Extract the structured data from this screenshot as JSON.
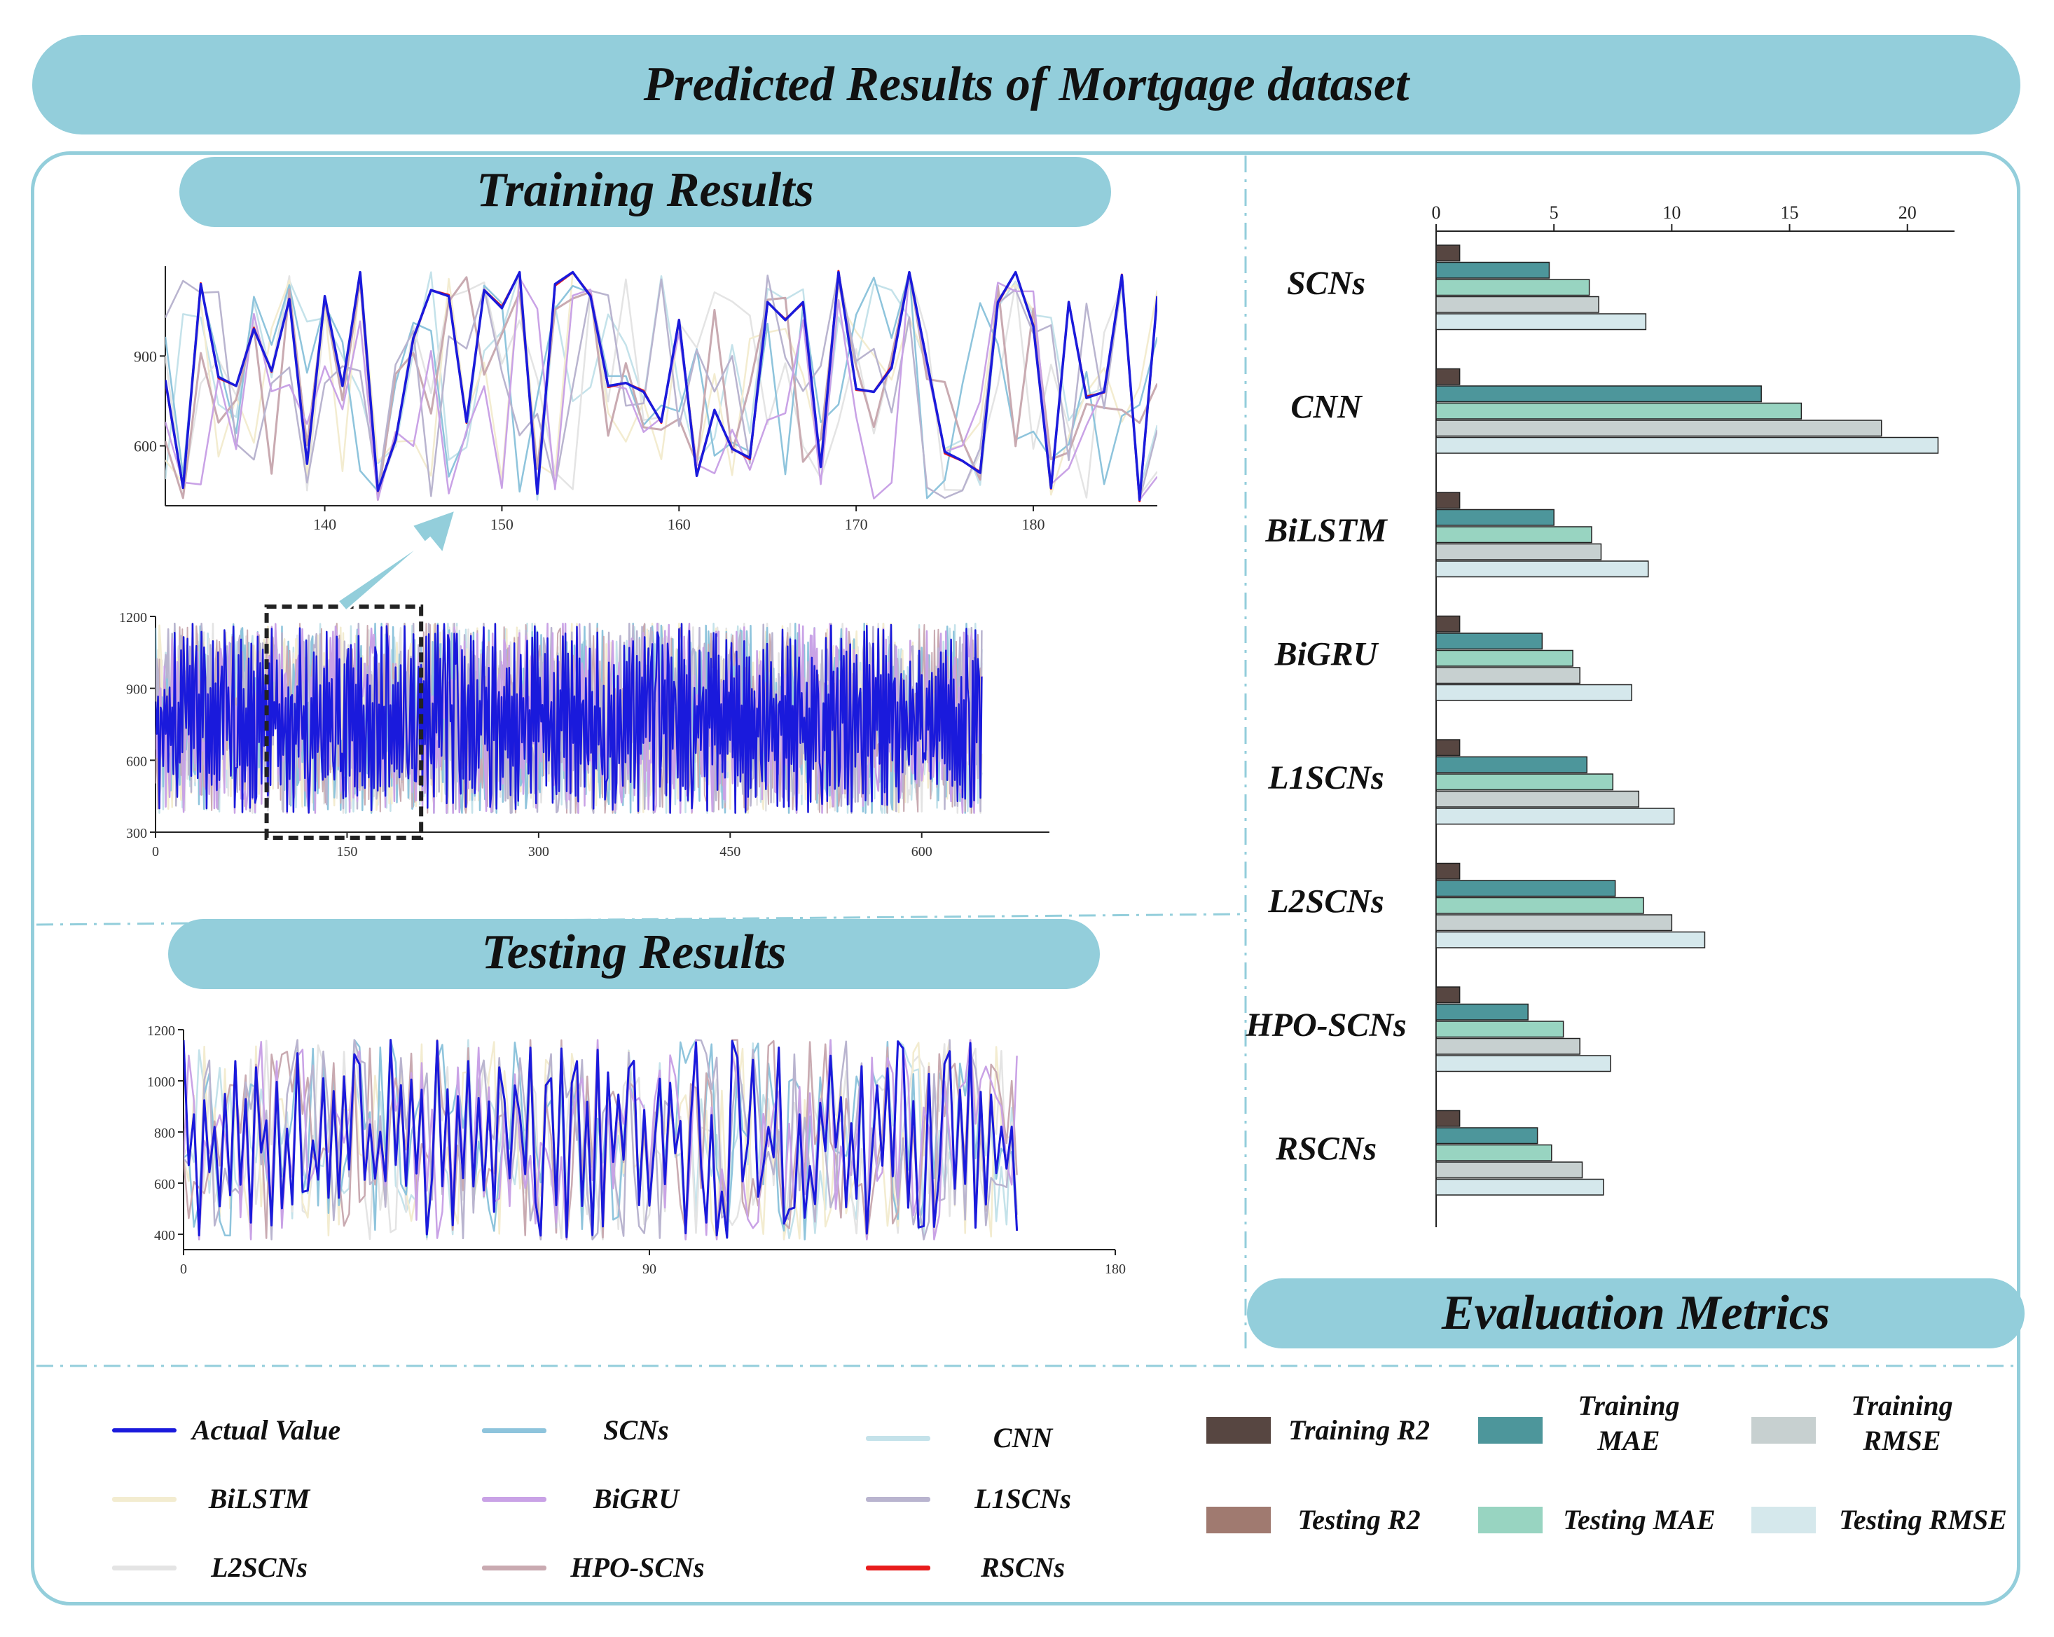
{
  "title": "Predicted Results of Mortgage dataset",
  "sections": {
    "training": "Training Results",
    "testing": "Testing Results",
    "metrics": "Evaluation Metrics"
  },
  "colors": {
    "banner": "#93cedb",
    "actual": "#1a1adc",
    "scns": "#8ec4dc",
    "cnn": "#c4e2ea",
    "bilstm": "#f3ecd0",
    "bigru": "#c9a2e6",
    "l1scns": "#b9b4cf",
    "l2scns": "#e4e4e4",
    "hposcns": "#c9aab1",
    "rscns": "#e81c1c",
    "training_r2": "#574641",
    "testing_r2": "#a07a70",
    "training_mae": "#4d969b",
    "testing_mae": "#98d4c1",
    "training_rmse": "#c7d0d0",
    "testing_rmse": "#d5e8ec"
  },
  "legend": {
    "lines": [
      {
        "key": "actual",
        "label": "Actual Value"
      },
      {
        "key": "scns",
        "label": "SCNs"
      },
      {
        "key": "cnn",
        "label": "CNN"
      },
      {
        "key": "bilstm",
        "label": "BiLSTM"
      },
      {
        "key": "bigru",
        "label": "BiGRU"
      },
      {
        "key": "l1scns",
        "label": "L1SCNs"
      },
      {
        "key": "l2scns",
        "label": "L2SCNs"
      },
      {
        "key": "hposcns",
        "label": "HPO-SCNs"
      },
      {
        "key": "rscns",
        "label": "RSCNs"
      }
    ],
    "metrics": [
      {
        "key": "training_r2",
        "label": "Training R2"
      },
      {
        "key": "training_mae",
        "label": "Training MAE"
      },
      {
        "key": "training_rmse",
        "label": "Training RMSE"
      },
      {
        "key": "testing_r2",
        "label": "Testing R2"
      },
      {
        "key": "testing_mae",
        "label": "Testing MAE"
      },
      {
        "key": "testing_rmse",
        "label": "Testing RMSE"
      }
    ]
  },
  "chart_data": [
    {
      "id": "training_zoom",
      "type": "line",
      "title": "Training Results (zoom)",
      "xlim": [
        131,
        187
      ],
      "ylim": [
        400,
        1200
      ],
      "xticks": [
        140,
        150,
        160,
        170,
        180
      ],
      "yticks": [
        600,
        900
      ],
      "x_start": 131,
      "actual": [
        820,
        460,
        1140,
        830,
        800,
        990,
        850,
        1090,
        540,
        1100,
        800,
        1180,
        450,
        620,
        960,
        1120,
        1100,
        680,
        1120,
        1060,
        1180,
        440,
        1140,
        1180,
        1100,
        800,
        810,
        780,
        680,
        1020,
        500,
        720,
        590,
        560,
        1080,
        1020,
        1080,
        530,
        1180,
        790,
        780,
        860,
        1180,
        880,
        580,
        550,
        510,
        1080,
        1180,
        1000,
        460,
        1080,
        760,
        780,
        1170,
        420,
        1100
      ]
    },
    {
      "id": "training_full",
      "type": "line",
      "title": "Training Results (full)",
      "xlim": [
        0,
        700
      ],
      "ylim": [
        300,
        1200
      ],
      "xticks": [
        0,
        150,
        300,
        450,
        600
      ],
      "yticks": [
        300,
        600,
        900,
        1200
      ],
      "n_points": 648,
      "value_range": [
        380,
        1170
      ],
      "zoom_window": [
        87,
        208
      ]
    },
    {
      "id": "testing",
      "type": "line",
      "title": "Testing Results",
      "xlim": [
        0,
        180
      ],
      "ylim": [
        340,
        1200
      ],
      "xticks": [
        0,
        90,
        180
      ],
      "yticks": [
        400,
        600,
        800,
        1000,
        1200
      ],
      "n_points": 162,
      "value_range": [
        380,
        1160
      ]
    },
    {
      "id": "metrics",
      "type": "bar",
      "orientation": "horizontal",
      "title": "Evaluation Metrics",
      "xlim": [
        0,
        22
      ],
      "xticks": [
        0,
        5,
        10,
        15,
        20
      ],
      "categories": [
        "SCNs",
        "CNN",
        "BiLSTM",
        "BiGRU",
        "L1SCNs",
        "L2SCNs",
        "HPO-SCNs",
        "RSCNs"
      ],
      "series": [
        {
          "key": "training_r2",
          "name": "Training R2",
          "values": [
            1.0,
            1.0,
            1.0,
            1.0,
            1.0,
            1.0,
            1.0,
            1.0
          ]
        },
        {
          "key": "training_mae",
          "name": "Training MAE",
          "values": [
            4.8,
            13.8,
            5.0,
            4.5,
            6.4,
            7.6,
            3.9,
            4.3
          ]
        },
        {
          "key": "testing_mae",
          "name": "Testing MAE",
          "values": [
            6.5,
            15.5,
            6.6,
            5.8,
            7.5,
            8.8,
            5.4,
            4.9
          ]
        },
        {
          "key": "training_rmse",
          "name": "Training RMSE",
          "values": [
            6.9,
            18.9,
            7.0,
            6.1,
            8.6,
            10.0,
            6.1,
            6.2
          ]
        },
        {
          "key": "testing_rmse",
          "name": "Testing RMSE",
          "values": [
            8.9,
            21.3,
            9.0,
            8.3,
            10.1,
            11.4,
            7.4,
            7.1
          ]
        }
      ]
    }
  ]
}
